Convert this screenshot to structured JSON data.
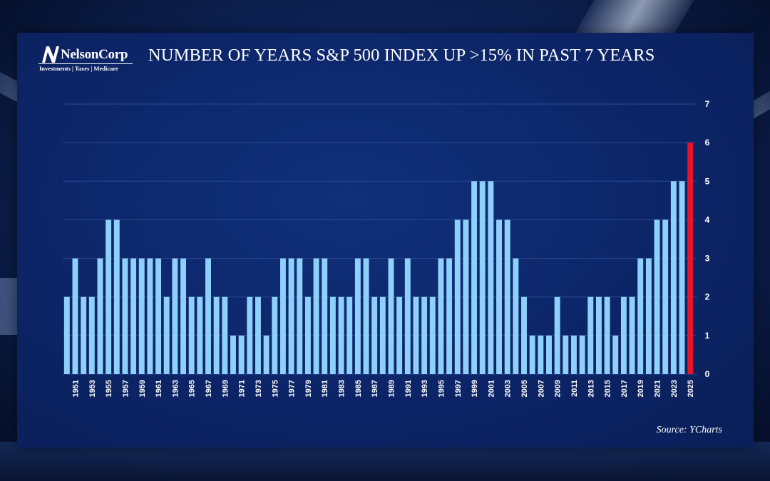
{
  "branding": {
    "logo_name": "NelsonCorp",
    "logo_tagline": "Investments | Taxes | Medicare"
  },
  "chart_data": {
    "type": "bar",
    "title": "NUMBER OF YEARS S&P 500 INDEX UP >15% IN PAST 7 YEARS",
    "source": "Source: YCharts",
    "xlabel": "",
    "ylabel": "",
    "ylim": [
      0,
      7
    ],
    "y_ticks": [
      0,
      1,
      2,
      3,
      4,
      5,
      6,
      7
    ],
    "y_axis_side": "right",
    "grid": true,
    "legend": "none",
    "categories": [
      1950,
      1951,
      1952,
      1953,
      1954,
      1955,
      1956,
      1957,
      1958,
      1959,
      1960,
      1961,
      1962,
      1963,
      1964,
      1965,
      1966,
      1967,
      1968,
      1969,
      1970,
      1971,
      1972,
      1973,
      1974,
      1975,
      1976,
      1977,
      1978,
      1979,
      1980,
      1981,
      1982,
      1983,
      1984,
      1985,
      1986,
      1987,
      1988,
      1989,
      1990,
      1991,
      1992,
      1993,
      1994,
      1995,
      1996,
      1997,
      1998,
      1999,
      2000,
      2001,
      2002,
      2003,
      2004,
      2005,
      2006,
      2007,
      2008,
      2009,
      2010,
      2011,
      2012,
      2013,
      2014,
      2015,
      2016,
      2017,
      2018,
      2019,
      2020,
      2021,
      2022,
      2023,
      2024,
      2025
    ],
    "x_tick_labels": [
      "1951",
      "1953",
      "1955",
      "1957",
      "1959",
      "1961",
      "1963",
      "1965",
      "1967",
      "1969",
      "1971",
      "1973",
      "1975",
      "1977",
      "1979",
      "1981",
      "1983",
      "1985",
      "1987",
      "1989",
      "1991",
      "1993",
      "1995",
      "1997",
      "1999",
      "2001",
      "2003",
      "2005",
      "2007",
      "2009",
      "2011",
      "2013",
      "2015",
      "2017",
      "2019",
      "2021",
      "2023",
      "2025"
    ],
    "values": [
      2,
      3,
      2,
      2,
      3,
      4,
      4,
      3,
      3,
      3,
      3,
      3,
      2,
      3,
      3,
      2,
      2,
      3,
      2,
      2,
      1,
      1,
      2,
      2,
      1,
      2,
      3,
      3,
      3,
      2,
      3,
      3,
      2,
      2,
      2,
      3,
      3,
      2,
      2,
      3,
      2,
      3,
      2,
      2,
      2,
      3,
      3,
      4,
      4,
      5,
      5,
      5,
      4,
      4,
      3,
      2,
      1,
      1,
      1,
      2,
      1,
      1,
      1,
      2,
      2,
      2,
      1,
      2,
      2,
      3,
      3,
      4,
      4,
      5,
      5,
      6
    ],
    "highlight": {
      "category": 2025,
      "color": "#e8142a"
    },
    "colors": {
      "bar": "#8fd0fb",
      "grid": "#2a4a93",
      "text": "#ffffff"
    }
  }
}
